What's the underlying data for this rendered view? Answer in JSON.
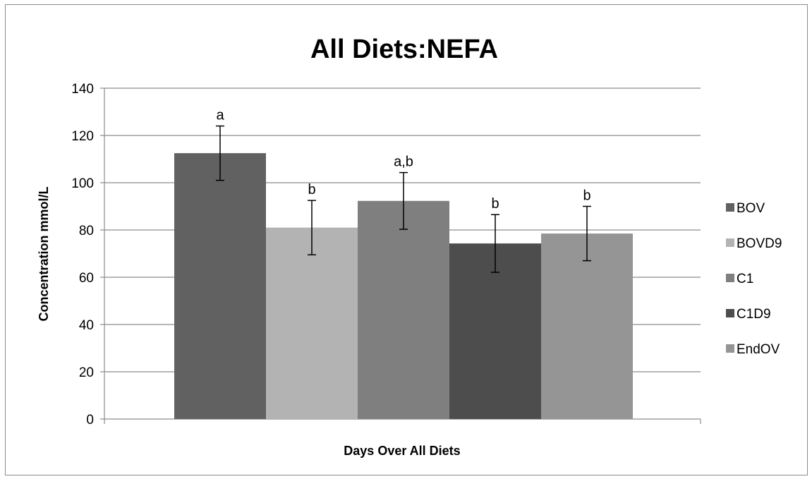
{
  "chart_data": {
    "type": "bar",
    "title": "All Diets:NEFA",
    "xlabel": "Days Over All Diets",
    "ylabel": "Concentration mmol/L",
    "ylim": [
      0,
      140
    ],
    "yticks": [
      0,
      20,
      40,
      60,
      80,
      100,
      120,
      140
    ],
    "grid": true,
    "legend_position": "right",
    "series": [
      {
        "name": "BOV",
        "value": 112.5,
        "error": 11.5,
        "label": "a",
        "color": "#616161"
      },
      {
        "name": "BOVD9",
        "value": 81,
        "error": 11.5,
        "label": "b",
        "color": "#b3b3b3"
      },
      {
        "name": "C1",
        "value": 92.3,
        "error": 12,
        "label": "a,b",
        "color": "#7f7f7f"
      },
      {
        "name": "C1D9",
        "value": 74.3,
        "error": 12.2,
        "label": "b",
        "color": "#4d4d4d"
      },
      {
        "name": "EndOV",
        "value": 78.5,
        "error": 11.5,
        "label": "b",
        "color": "#959595"
      }
    ]
  }
}
